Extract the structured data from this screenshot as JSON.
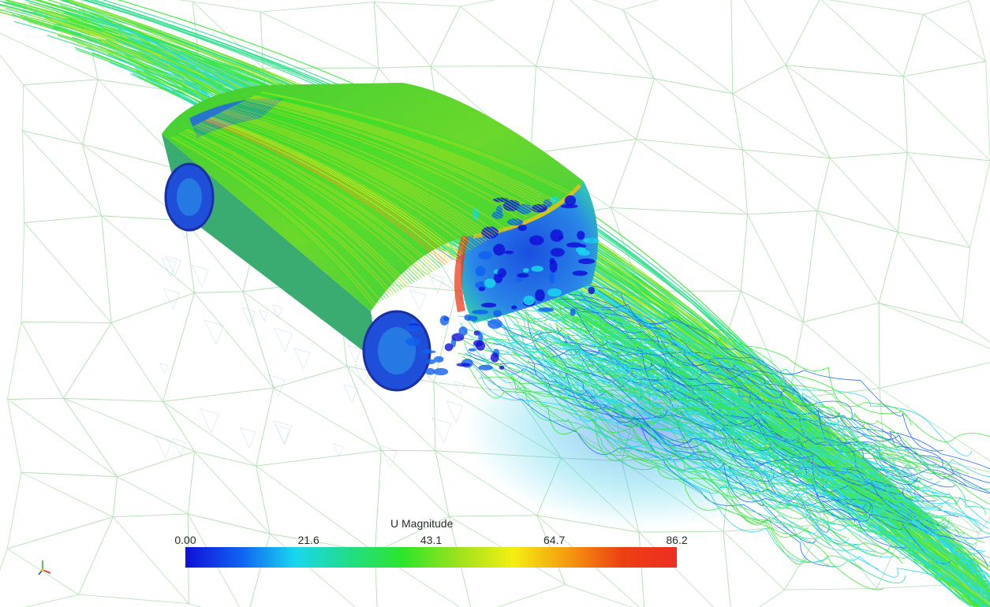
{
  "scene": {
    "colormap": [
      "#1010d8",
      "#1060f0",
      "#19d6ee",
      "#22dd88",
      "#2ee52a",
      "#9ee21e",
      "#f3ef12",
      "#f59a10",
      "#ec4012",
      "#ee2d22"
    ]
  },
  "legend": {
    "title": "U Magnitude",
    "ticks": [
      {
        "label": "0.00",
        "value": 0.0
      },
      {
        "label": "21.6",
        "value": 21.6
      },
      {
        "label": "43.1",
        "value": 43.1
      },
      {
        "label": "64.7",
        "value": 64.7
      },
      {
        "label": "86.2",
        "value": 86.2
      }
    ],
    "min": 0.0,
    "max": 86.2
  },
  "icons": {
    "orientation": "axes-orientation-icon"
  }
}
